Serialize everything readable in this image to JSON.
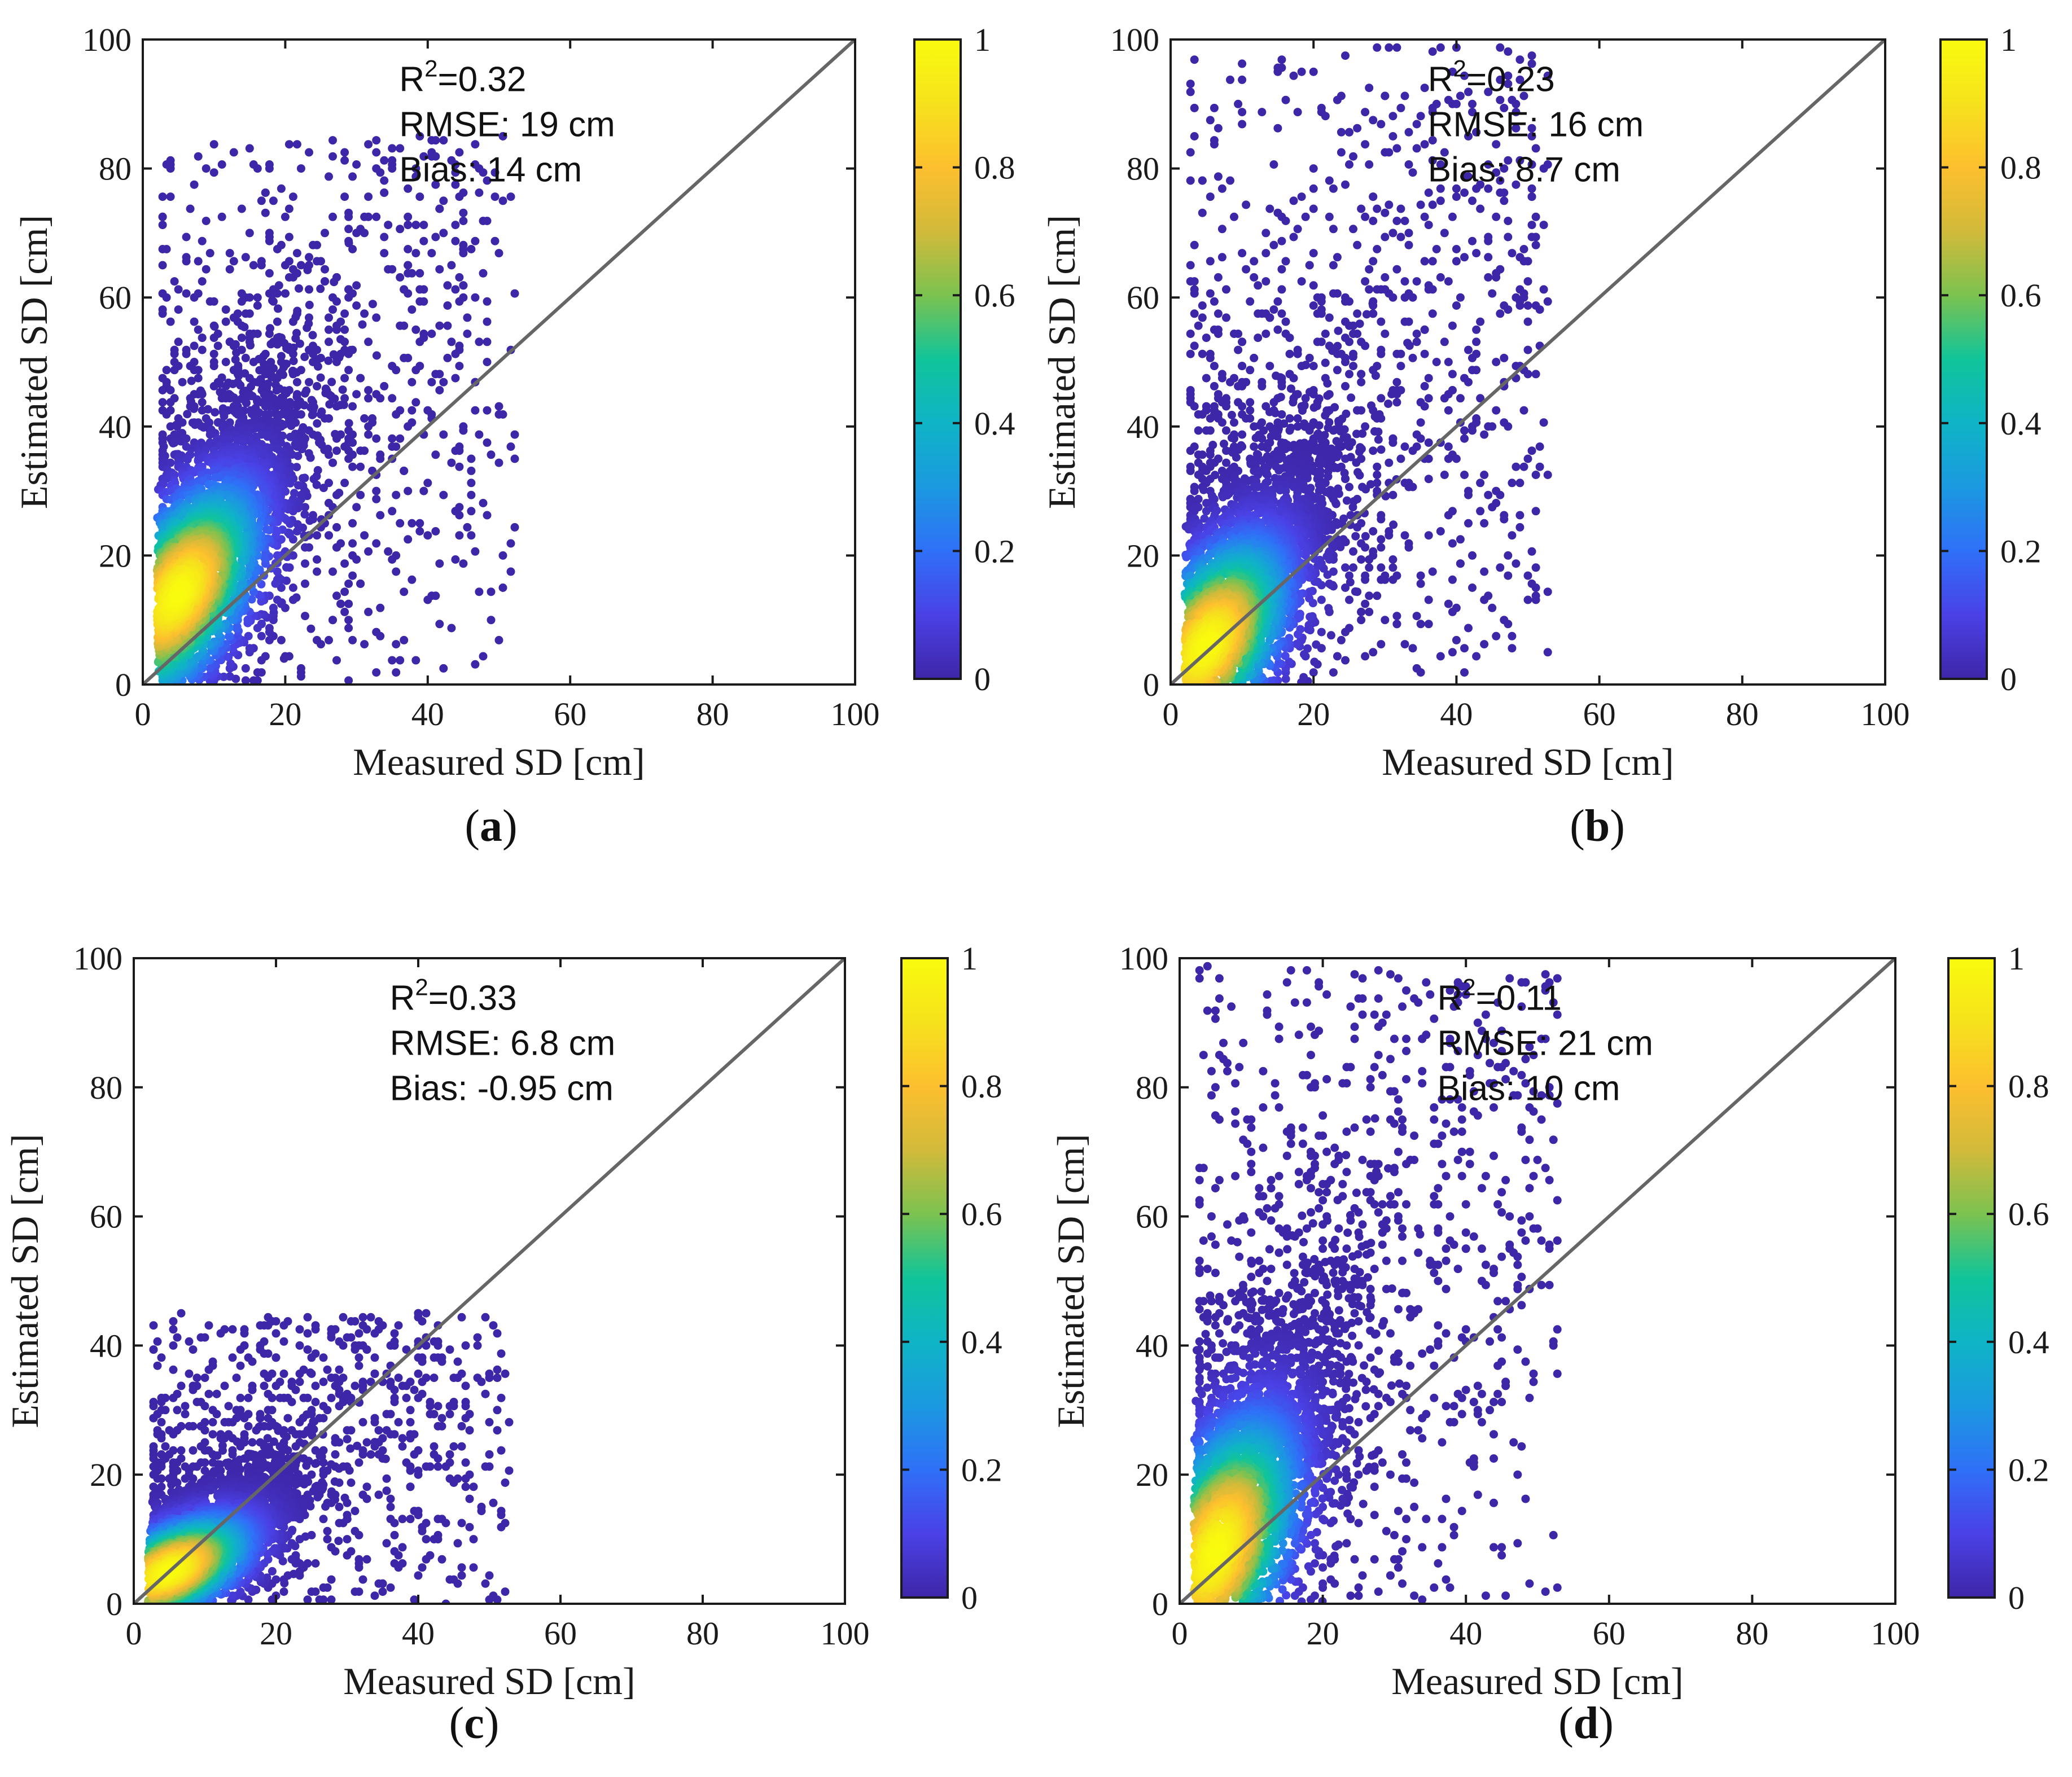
{
  "chart_data": [
    {
      "type": "scatter",
      "panel_label": "a",
      "xlabel": "Measured SD [cm]",
      "ylabel": "Estimated SD [cm]",
      "xlim": [
        0,
        100
      ],
      "ylim": [
        0,
        100
      ],
      "xticks": [
        "0",
        "20",
        "40",
        "60",
        "80",
        "100"
      ],
      "yticks": [
        "0",
        "20",
        "40",
        "60",
        "80",
        "100"
      ],
      "reference_line": "1:1",
      "stats": {
        "r2_prefix": "R",
        "r2_exp": "2",
        "r2_value": "=0.32",
        "rmse": "RMSE: 19 cm",
        "bias": "Bias: 14 cm"
      },
      "colorbar": {
        "ticks": [
          "0",
          "0.2",
          "0.4",
          "0.6",
          "0.8",
          "1"
        ],
        "range": [
          0,
          1
        ]
      },
      "density": {
        "core": [
          5,
          14
        ],
        "spread_x": 4.5,
        "spread_y": 7,
        "trend": 1.6,
        "outlier_x_max": 52,
        "outlier_y_max": 85
      }
    },
    {
      "type": "scatter",
      "panel_label": "b",
      "xlabel": "Measured SD [cm]",
      "ylabel": "Estimated SD [cm]",
      "xlim": [
        0,
        100
      ],
      "ylim": [
        0,
        100
      ],
      "xticks": [
        "0",
        "20",
        "40",
        "60",
        "80",
        "100"
      ],
      "yticks": [
        "0",
        "20",
        "40",
        "60",
        "80",
        "100"
      ],
      "reference_line": "1:1",
      "stats": {
        "r2_prefix": "R",
        "r2_exp": "2",
        "r2_value": "=0.23",
        "rmse": "RMSE: 16 cm",
        "bias": "Bias: 8.7 cm"
      },
      "colorbar": {
        "ticks": [
          "0",
          "0.2",
          "0.4",
          "0.6",
          "0.8",
          "1"
        ],
        "range": [
          0,
          1
        ]
      },
      "density": {
        "core": [
          5,
          6
        ],
        "spread_x": 4.5,
        "spread_y": 7,
        "trend": 1.5,
        "outlier_x_max": 53,
        "outlier_y_max": 99
      }
    },
    {
      "type": "scatter",
      "panel_label": "c",
      "xlabel": "Measured SD [cm]",
      "ylabel": "Estimated SD [cm]",
      "xlim": [
        0,
        100
      ],
      "ylim": [
        0,
        100
      ],
      "xticks": [
        "0",
        "20",
        "40",
        "60",
        "80",
        "100"
      ],
      "yticks": [
        "0",
        "20",
        "40",
        "60",
        "80",
        "100"
      ],
      "reference_line": "1:1",
      "stats": {
        "r2_prefix": "R",
        "r2_exp": "2",
        "r2_value": "=0.33",
        "rmse": "RMSE: 6.8 cm",
        "bias": "Bias: -0.95 cm"
      },
      "colorbar": {
        "ticks": [
          "0",
          "0.2",
          "0.4",
          "0.6",
          "0.8",
          "1"
        ],
        "range": [
          0,
          1
        ]
      },
      "density": {
        "core": [
          5,
          5
        ],
        "spread_x": 4.5,
        "spread_y": 3.5,
        "trend": 0.8,
        "outlier_x_max": 53,
        "outlier_y_max": 45
      }
    },
    {
      "type": "scatter",
      "panel_label": "d",
      "xlabel": "Measured SD [cm]",
      "ylabel": "Estimated SD [cm]",
      "xlim": [
        0,
        100
      ],
      "ylim": [
        0,
        100
      ],
      "xticks": [
        "0",
        "20",
        "40",
        "60",
        "80",
        "100"
      ],
      "yticks": [
        "0",
        "20",
        "40",
        "60",
        "80",
        "100"
      ],
      "reference_line": "1:1",
      "stats": {
        "r2_prefix": "R",
        "r2_exp": "2",
        "r2_value": "=0.11",
        "rmse": "RMSE: 21 cm",
        "bias": "Bias: 10 cm"
      },
      "colorbar": {
        "ticks": [
          "0",
          "0.2",
          "0.4",
          "0.6",
          "0.8",
          "1"
        ],
        "range": [
          0,
          1
        ]
      },
      "density": {
        "core": [
          5,
          8
        ],
        "spread_x": 4.5,
        "spread_y": 9,
        "trend": 1.8,
        "outlier_x_max": 53,
        "outlier_y_max": 99
      }
    }
  ],
  "colors": {
    "axis": "#1a1a1a",
    "reference_line": "#666666",
    "background": "#ffffff",
    "colormap": [
      "#3e26a8",
      "#4a41e6",
      "#2f70f8",
      "#1b99e0",
      "#0fb4c6",
      "#10c49a",
      "#7cc250",
      "#d2ba3a",
      "#fdbf2f",
      "#f6e21c",
      "#f9fb0e"
    ]
  }
}
